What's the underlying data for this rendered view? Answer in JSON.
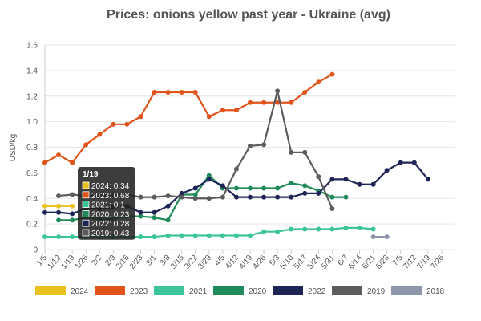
{
  "chart_data": {
    "type": "line",
    "title": "Prices: onions yellow past year - Ukraine (avg)",
    "xlabel": "",
    "ylabel": "USD/kg",
    "ylim": [
      0,
      1.6
    ],
    "yticks": [
      "0",
      "0.2",
      "0.4",
      "0.6",
      "0.8",
      "1.0",
      "1.2",
      "1.4",
      "1.6"
    ],
    "categories": [
      "1/5",
      "1/12",
      "1/19",
      "1/26",
      "2/2",
      "2/9",
      "2/16",
      "2/23",
      "3/1",
      "3/8",
      "3/15",
      "3/22",
      "3/29",
      "4/5",
      "4/12",
      "4/19",
      "4/26",
      "5/3",
      "5/10",
      "5/17",
      "5/24",
      "5/31",
      "6/7",
      "6/14",
      "6/21",
      "6/28",
      "7/5",
      "7/12",
      "7/19",
      "7/26"
    ],
    "grid": true,
    "legend_position": "bottom",
    "series": [
      {
        "name": "2024",
        "color": "#e8c11c",
        "values": [
          0.34,
          0.34,
          0.34,
          null,
          null,
          null,
          null,
          null,
          null,
          null,
          null,
          null,
          null,
          null,
          null,
          null,
          null,
          null,
          null,
          null,
          null,
          null,
          null,
          null,
          null,
          null,
          null,
          null,
          null,
          null
        ]
      },
      {
        "name": "2023",
        "color": "#e0541c",
        "values": [
          0.68,
          0.74,
          0.68,
          0.82,
          0.9,
          0.98,
          0.98,
          1.04,
          1.23,
          1.23,
          1.23,
          1.23,
          1.04,
          1.09,
          1.09,
          1.15,
          1.15,
          1.15,
          1.15,
          1.23,
          1.31,
          1.37,
          null,
          null,
          null,
          null,
          null,
          null,
          null,
          null
        ]
      },
      {
        "name": "2021",
        "color": "#3cc49a",
        "values": [
          0.1,
          0.1,
          0.1,
          0.1,
          0.1,
          0.1,
          0.1,
          0.1,
          0.1,
          0.11,
          0.11,
          0.11,
          0.11,
          0.11,
          0.11,
          0.11,
          0.14,
          0.14,
          0.16,
          0.16,
          0.16,
          0.16,
          0.17,
          0.17,
          0.16,
          null,
          null,
          null,
          null,
          null
        ]
      },
      {
        "name": "2020",
        "color": "#1f8a5a",
        "values": [
          null,
          0.23,
          0.23,
          0.25,
          0.24,
          0.24,
          0.26,
          0.26,
          0.25,
          0.23,
          0.43,
          0.43,
          0.58,
          0.48,
          0.48,
          0.48,
          0.48,
          0.48,
          0.52,
          0.5,
          0.46,
          0.41,
          0.41,
          null,
          null,
          null,
          null,
          null,
          null,
          null
        ]
      },
      {
        "name": "2022",
        "color": "#1f2456",
        "values": [
          0.29,
          0.29,
          0.28,
          0.32,
          0.32,
          0.33,
          0.34,
          0.29,
          0.29,
          0.34,
          0.44,
          0.48,
          0.55,
          0.5,
          0.41,
          0.41,
          0.41,
          0.41,
          0.41,
          0.44,
          0.44,
          0.55,
          0.55,
          0.51,
          0.51,
          0.62,
          0.68,
          0.68,
          0.55,
          null
        ]
      },
      {
        "name": "2019",
        "color": "#5c5c5c",
        "values": [
          null,
          0.42,
          0.43,
          0.42,
          0.42,
          0.43,
          0.43,
          0.41,
          0.41,
          0.42,
          0.41,
          0.4,
          0.4,
          0.41,
          0.63,
          0.81,
          0.82,
          1.24,
          0.76,
          0.76,
          0.57,
          0.32,
          null,
          null,
          null,
          null,
          null,
          null,
          null,
          null
        ]
      },
      {
        "name": "2018",
        "color": "#8e96aa",
        "values": [
          null,
          null,
          null,
          null,
          null,
          null,
          null,
          null,
          null,
          null,
          null,
          null,
          null,
          null,
          null,
          null,
          null,
          null,
          null,
          null,
          null,
          null,
          null,
          null,
          0.1,
          0.1,
          null,
          null,
          null,
          null
        ]
      }
    ],
    "tooltip": {
      "title": "1/19",
      "rows": [
        {
          "label": "2024: 0.34",
          "color": "#e8c11c"
        },
        {
          "label": "2023: 0.68",
          "color": "#e0541c"
        },
        {
          "label": "2021: 0.1",
          "color": "#3cc49a"
        },
        {
          "label": "2020: 0.23",
          "color": "#1f8a5a"
        },
        {
          "label": "2022: 0.28",
          "color": "#1f2456"
        },
        {
          "label": "2019: 0.43",
          "color": "#5c5c5c"
        }
      ]
    }
  }
}
